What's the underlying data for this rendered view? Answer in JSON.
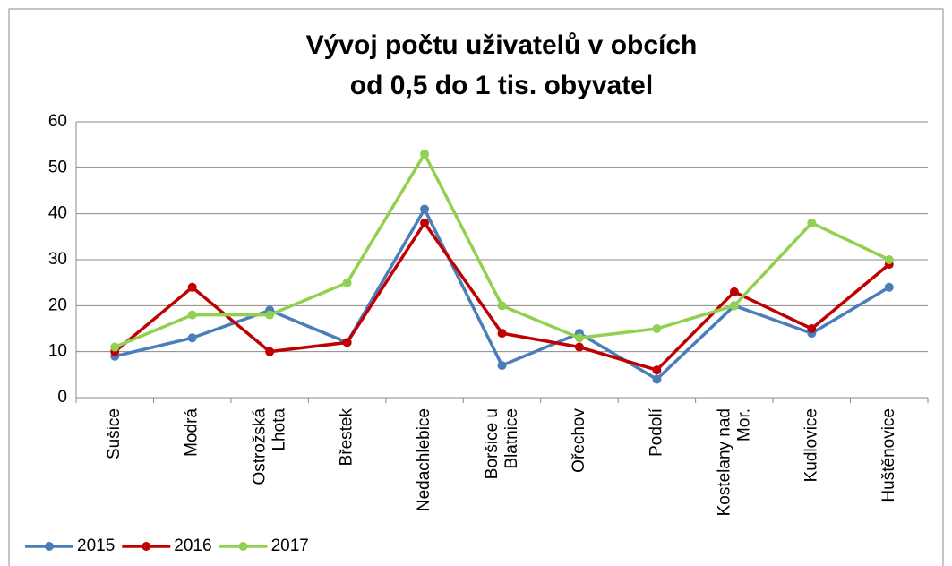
{
  "chart_data": {
    "type": "line",
    "title": [
      "Vývoj počtu uživatelů v obcích",
      "od 0,5 do 1 tis. obyvatel"
    ],
    "categories": [
      "Sušice",
      "Modrá",
      "Ostrožská Lhota",
      "Břestek",
      "Nedachlebice",
      "Boršice u Blatnice",
      "Ořechov",
      "Podolí",
      "Kostelany nad Mor.",
      "Kudlovice",
      "Huštěnovice"
    ],
    "series": [
      {
        "name": "2015",
        "color": "#4a7ebb",
        "values": [
          9,
          13,
          19,
          12,
          41,
          7,
          14,
          4,
          20,
          14,
          24
        ]
      },
      {
        "name": "2016",
        "color": "#c00000",
        "values": [
          10,
          24,
          10,
          12,
          38,
          14,
          11,
          6,
          23,
          15,
          29
        ]
      },
      {
        "name": "2017",
        "color": "#92d050",
        "values": [
          11,
          18,
          18,
          25,
          53,
          20,
          13,
          15,
          20,
          38,
          30
        ]
      }
    ],
    "ylim": [
      0,
      60
    ],
    "yticks": [
      0,
      10,
      20,
      30,
      40,
      50,
      60
    ],
    "grid": true,
    "legend": "bottom-left"
  }
}
